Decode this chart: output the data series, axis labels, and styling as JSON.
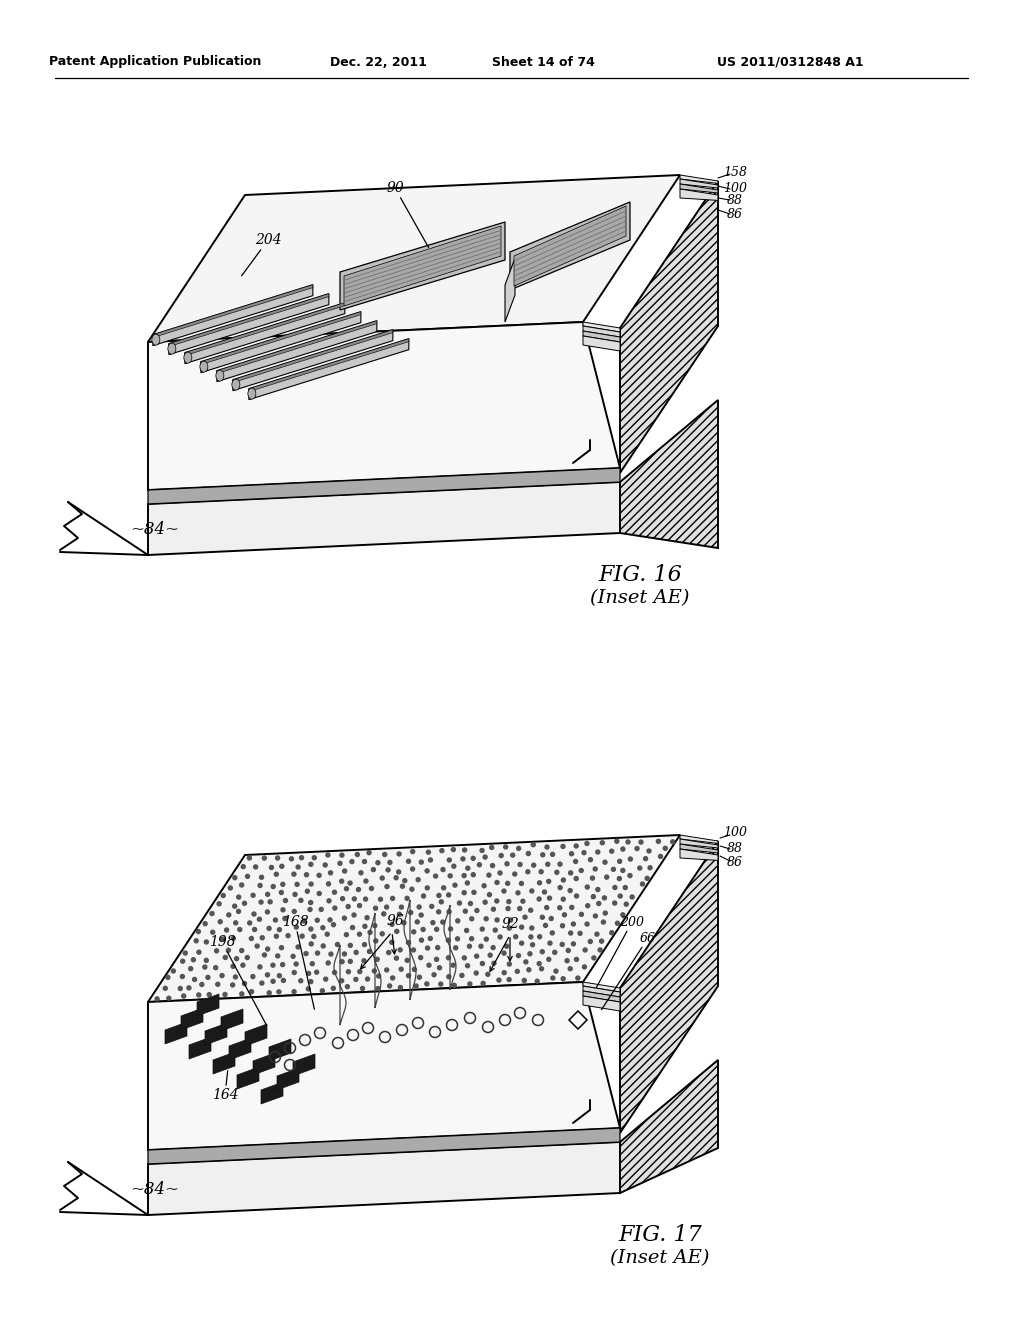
{
  "background": "#ffffff",
  "lc": "#000000",
  "header_left": "Patent Application Publication",
  "header_mid1": "Dec. 22, 2011",
  "header_mid2": "Sheet 14 of 74",
  "header_right": "US 2011/0312848 A1",
  "fig16_title": "FIG. 16",
  "fig16_sub": "(Inset AE)",
  "fig17_title": "FIG. 17",
  "fig17_sub": "(Inset AE)",
  "label84": "~84~",
  "hatch_fc": "#e0e0e0",
  "top_fc": "#f5f5f5",
  "front_fc": "#f0f0f0",
  "dark_sq": "#1a1a1a",
  "ridge_fc": "#c8c8c8",
  "ridge_top": "#888888"
}
